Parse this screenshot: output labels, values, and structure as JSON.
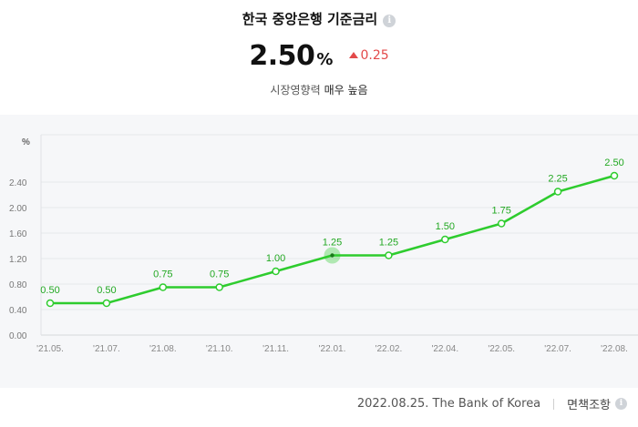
{
  "header": {
    "title": "한국 중앙은행 기준금리",
    "info_icon": "i",
    "rate_value": "2.50",
    "rate_unit": "%",
    "change_value": "0.25",
    "impact_label": "시장영향력",
    "impact_value": "매우 높음"
  },
  "colors": {
    "line": "#2ecc2e",
    "label": "#22a822",
    "up": "#e34a4a",
    "panel_bg": "#f6f7f9"
  },
  "chart_data": {
    "type": "line",
    "title": "",
    "xlabel": "",
    "ylabel": "%",
    "ylim": [
      0,
      2.8
    ],
    "yticks": [
      "0.00",
      "0.40",
      "0.80",
      "1.20",
      "1.60",
      "2.00",
      "2.40"
    ],
    "categories": [
      "'21.05.",
      "'21.07.",
      "'21.08.",
      "'21.10.",
      "'21.11.",
      "'22.01.",
      "'22.02.",
      "'22.04.",
      "'22.05.",
      "'22.07.",
      "'22.08."
    ],
    "series": [
      {
        "values": [
          0.5,
          0.5,
          0.75,
          0.75,
          1.0,
          1.25,
          1.25,
          1.5,
          1.75,
          2.25,
          2.5
        ]
      }
    ],
    "labels": [
      "0.50",
      "0.50",
      "0.75",
      "0.75",
      "1.00",
      "1.25",
      "1.25",
      "1.50",
      "1.75",
      "2.25",
      "2.50"
    ],
    "highlight_index": 5,
    "grid": true
  },
  "footer": {
    "date_source": "2022.08.25. The Bank of Korea",
    "disclaimer": "면책조항",
    "info_icon": "i"
  }
}
